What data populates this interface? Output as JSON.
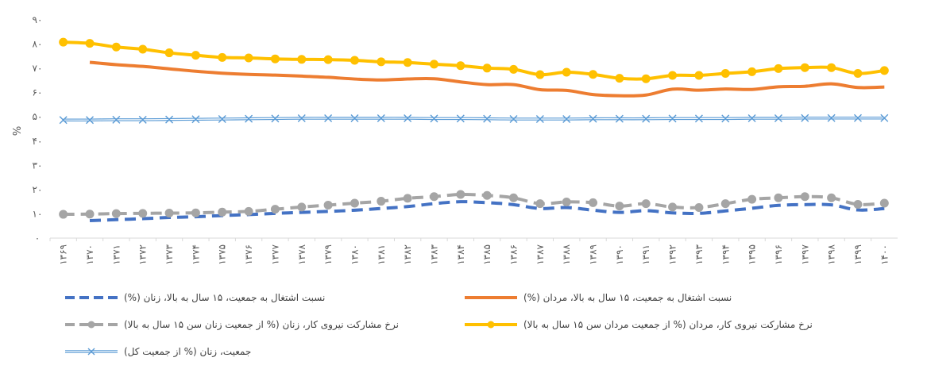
{
  "chart_data": {
    "type": "line",
    "title": "",
    "xlabel": "",
    "ylabel": "%",
    "ylim": [
      0,
      90
    ],
    "yticks": [
      "۰",
      "۱۰",
      "۲۰",
      "۳۰",
      "۴۰",
      "۵۰",
      "۶۰",
      "۷۰",
      "۸۰",
      "۹۰"
    ],
    "categories": [
      "۱۳۶۹",
      "۱۳۷۰",
      "۱۳۷۱",
      "۱۳۷۲",
      "۱۳۷۳",
      "۱۳۷۴",
      "۱۳۷۵",
      "۱۳۷۶",
      "۱۳۷۷",
      "۱۳۷۸",
      "۱۳۷۹",
      "۱۳۸۰",
      "۱۳۸۱",
      "۱۳۸۲",
      "۱۳۸۳",
      "۱۳۸۴",
      "۱۳۸۵",
      "۱۳۸۶",
      "۱۳۸۷",
      "۱۳۸۸",
      "۱۳۸۹",
      "۱۳۹۰",
      "۱۳۹۱",
      "۱۳۹۲",
      "۱۳۹۳",
      "۱۳۹۴",
      "۱۳۹۵",
      "۱۳۹۶",
      "۱۳۹۷",
      "۱۳۹۸",
      "۱۳۹۹",
      "۱۴۰۰"
    ],
    "legend_position": "bottom",
    "grid": false,
    "series": [
      {
        "name": "نسبت اشتغال به جمعیت، ۱۵ سال به بالا، زنان (%)",
        "color": "#4472C4",
        "style": "dashed",
        "values": [
          null,
          7.2,
          7.6,
          8.0,
          8.5,
          8.8,
          9.3,
          9.7,
          10.2,
          10.6,
          11.0,
          11.5,
          12.2,
          13.0,
          14.2,
          15.0,
          14.6,
          13.8,
          12.2,
          12.6,
          11.5,
          10.6,
          11.3,
          10.4,
          10.2,
          11.2,
          12.3,
          13.5,
          13.8,
          13.7,
          11.6,
          12.2
        ]
      },
      {
        "name": "نسبت اشتغال به جمعیت، ۱۵ سال به بالا، مردان (%)",
        "color": "#ED7D31",
        "style": "solid",
        "values": [
          null,
          72.5,
          71.5,
          70.8,
          69.8,
          68.8,
          68.0,
          67.5,
          67.2,
          66.8,
          66.3,
          65.6,
          65.2,
          65.6,
          65.7,
          64.4,
          63.3,
          63.3,
          61.2,
          60.9,
          59.2,
          58.7,
          59.0,
          61.4,
          61.0,
          61.5,
          61.3,
          62.4,
          62.6,
          63.6,
          62.1,
          62.3
        ]
      },
      {
        "name": "نرخ مشارکت نیروی کار، زنان (% از جمعیت زنان سن ۱۵ سال به بالا)",
        "color": "#A5A5A5",
        "style": "dashed",
        "marker": "circle",
        "values": [
          9.8,
          9.9,
          10.1,
          10.2,
          10.3,
          10.4,
          10.7,
          11.0,
          11.9,
          12.8,
          13.6,
          14.4,
          15.2,
          16.4,
          17.1,
          18.0,
          17.6,
          16.6,
          14.2,
          14.9,
          14.6,
          13.2,
          14.2,
          12.8,
          12.6,
          14.2,
          16.0,
          16.6,
          17.1,
          16.6,
          13.9,
          14.4
        ]
      },
      {
        "name": "نرخ مشارکت نیروی کار، مردان (% از جمعیت مردان سن ۱۵ سال به بالا)",
        "color": "#FFC000",
        "style": "solid",
        "marker": "circle",
        "values": [
          80.8,
          80.3,
          78.8,
          77.9,
          76.4,
          75.4,
          74.5,
          74.3,
          73.9,
          73.7,
          73.6,
          73.3,
          72.7,
          72.4,
          71.7,
          71.1,
          70.1,
          69.6,
          67.4,
          68.4,
          67.5,
          65.9,
          65.7,
          67.1,
          67.1,
          67.9,
          68.6,
          69.9,
          70.3,
          70.3,
          67.9,
          69.1
        ]
      },
      {
        "name": "جمعیت، زنان (% از جمعیت کل)",
        "color": "#5B9BD5",
        "style": "double",
        "marker": "x",
        "values": [
          48.7,
          48.7,
          48.8,
          48.8,
          48.9,
          49.0,
          49.1,
          49.2,
          49.3,
          49.4,
          49.4,
          49.4,
          49.4,
          49.4,
          49.3,
          49.3,
          49.2,
          49.1,
          49.1,
          49.1,
          49.2,
          49.2,
          49.2,
          49.3,
          49.3,
          49.3,
          49.4,
          49.4,
          49.5,
          49.5,
          49.5,
          49.5
        ]
      }
    ]
  }
}
